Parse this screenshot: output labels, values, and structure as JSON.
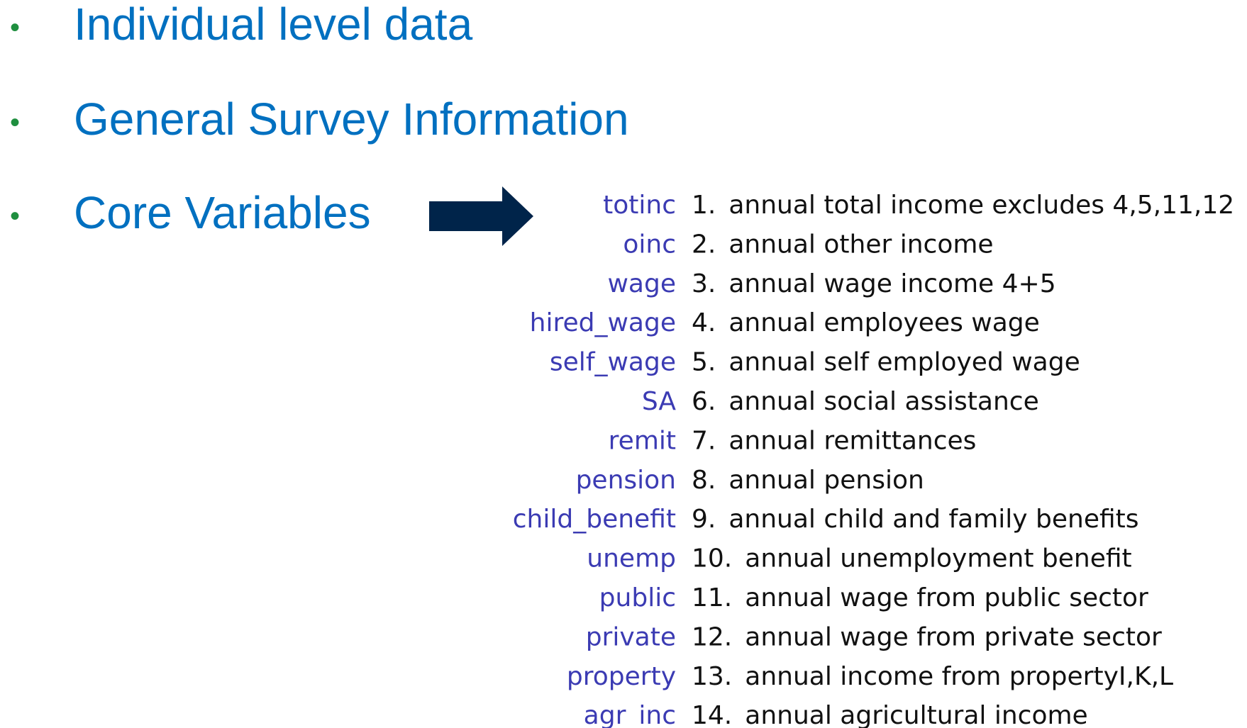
{
  "bullets": [
    "Individual level data",
    "General Survey Information",
    "Core Variables"
  ],
  "variables": [
    {
      "name": "totinc",
      "number": "1.",
      "description": "annual total income excludes 4,5,11,12"
    },
    {
      "name": "oinc",
      "number": "2.",
      "description": "annual other income"
    },
    {
      "name": "wage",
      "number": "3.",
      "description": "annual wage income 4+5"
    },
    {
      "name": "hired_wage",
      "number": "4.",
      "description": "annual employees wage"
    },
    {
      "name": "self_wage",
      "number": "5.",
      "description": "annual self employed wage"
    },
    {
      "name": "SA",
      "number": "6.",
      "description": "annual social assistance"
    },
    {
      "name": "remit",
      "number": "7.",
      "description": "annual remittances"
    },
    {
      "name": "pension",
      "number": "8.",
      "description": "annual pension"
    },
    {
      "name": "child_benefit",
      "number": "9.",
      "description": "annual child and family benefits"
    },
    {
      "name": "unemp",
      "number": "10.",
      "description": "annual unemployment benefit"
    },
    {
      "name": "public",
      "number": "11.",
      "description": "annual wage from public sector"
    },
    {
      "name": "private",
      "number": "12.",
      "description": "annual wage from private sector"
    },
    {
      "name": "property",
      "number": "13.",
      "description": "annual income from propertyI,K,L"
    },
    {
      "name": "agr_inc",
      "number": "14.",
      "description": "annual agricultural income"
    }
  ]
}
